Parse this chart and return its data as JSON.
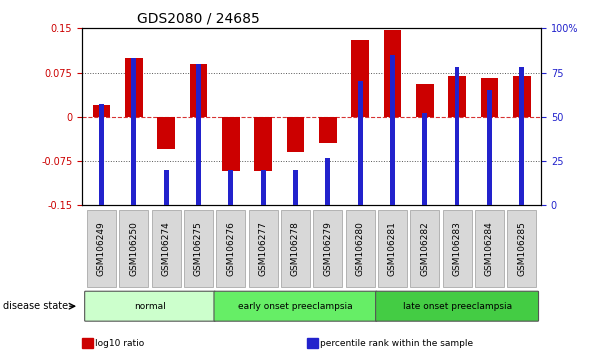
{
  "title": "GDS2080 / 24685",
  "samples": [
    "GSM106249",
    "GSM106250",
    "GSM106274",
    "GSM106275",
    "GSM106276",
    "GSM106277",
    "GSM106278",
    "GSM106279",
    "GSM106280",
    "GSM106281",
    "GSM106282",
    "GSM106283",
    "GSM106284",
    "GSM106285"
  ],
  "log10_ratio": [
    0.02,
    0.1,
    -0.055,
    0.09,
    -0.092,
    -0.092,
    -0.06,
    -0.045,
    0.13,
    0.148,
    0.055,
    0.07,
    0.065,
    0.07
  ],
  "percentile_rank": [
    57,
    83,
    20,
    80,
    20,
    20,
    20,
    27,
    70,
    85,
    52,
    78,
    65,
    78
  ],
  "bar_color_red": "#cc0000",
  "bar_color_blue": "#2222cc",
  "groups": [
    {
      "label": "normal",
      "start": 0,
      "end": 4,
      "color": "#ccffcc"
    },
    {
      "label": "early onset preeclampsia",
      "start": 4,
      "end": 9,
      "color": "#66ee66"
    },
    {
      "label": "late onset preeclampsia",
      "start": 9,
      "end": 14,
      "color": "#44cc44"
    }
  ],
  "ylim_left": [
    -0.15,
    0.15
  ],
  "ylim_right": [
    0,
    100
  ],
  "yticks_left": [
    -0.15,
    -0.075,
    0,
    0.075,
    0.15
  ],
  "ytick_labels_left": [
    "-0.15",
    "-0.075",
    "0",
    "0.075",
    "0.15"
  ],
  "yticks_right": [
    0,
    25,
    50,
    75,
    100
  ],
  "ytick_labels_right": [
    "0",
    "25",
    "50",
    "75",
    "100%"
  ],
  "hlines_dotted": [
    0.075,
    -0.075
  ],
  "hline_zero": 0.0,
  "legend_items": [
    {
      "label": "log10 ratio",
      "color": "#cc0000"
    },
    {
      "label": "percentile rank within the sample",
      "color": "#2222cc"
    }
  ],
  "disease_state_label": "disease state",
  "background_color": "#ffffff",
  "red_bar_width": 0.55,
  "blue_bar_width": 0.15,
  "title_fontsize": 10,
  "tick_fontsize": 7,
  "label_fontsize": 8
}
